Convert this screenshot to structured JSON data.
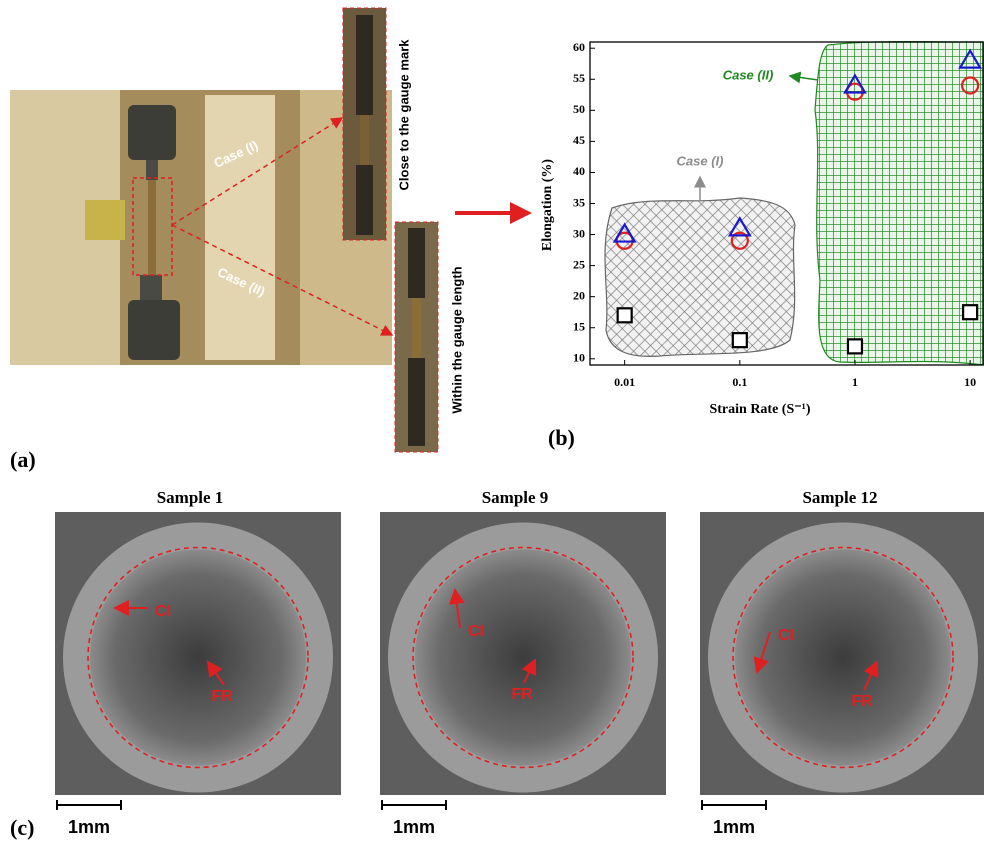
{
  "chart_data": {
    "type": "scatter",
    "panel_label": "(b)",
    "xlabel": "Strain Rate (S⁻¹)",
    "ylabel": "Elongation (%)",
    "x": [
      0.01,
      0.1,
      1,
      10
    ],
    "series": [
      {
        "color": "#000000",
        "marker": "square",
        "values": [
          17,
          13,
          12,
          17.5
        ]
      },
      {
        "color": "#e02020",
        "marker": "circle",
        "values": [
          29,
          29,
          53,
          54
        ]
      },
      {
        "color": "#1a1acc",
        "marker": "triangle",
        "values": [
          30,
          31,
          54,
          58
        ]
      }
    ],
    "xlim": [
      0.005,
      13.2
    ],
    "ylim": [
      9,
      61
    ],
    "log_x": true,
    "xticks": [
      0.01,
      0.1,
      1,
      10
    ],
    "yticks": [
      10,
      15,
      20,
      25,
      30,
      35,
      40,
      45,
      50,
      55,
      60
    ],
    "annotations": [
      {
        "text": "Case (I)",
        "color": "#8c8c8c"
      },
      {
        "text": "Case (II)",
        "color": "#1f8a1f"
      }
    ]
  },
  "panel_a": {
    "label": "(a)",
    "case_labels": [
      "Case (I)",
      "Case (II)"
    ],
    "inset_captions": [
      "Close to the gauge mark",
      "Within the gauge length"
    ]
  },
  "panel_c": {
    "label": "(c)",
    "samples": [
      {
        "title": "Sample 1",
        "labels": [
          "CI",
          "FR"
        ],
        "scale": "1mm"
      },
      {
        "title": "Sample 9",
        "labels": [
          "CI",
          "FR"
        ],
        "scale": "1mm"
      },
      {
        "title": "Sample 12",
        "labels": [
          "CI",
          "FR"
        ],
        "scale": "1mm"
      }
    ]
  }
}
